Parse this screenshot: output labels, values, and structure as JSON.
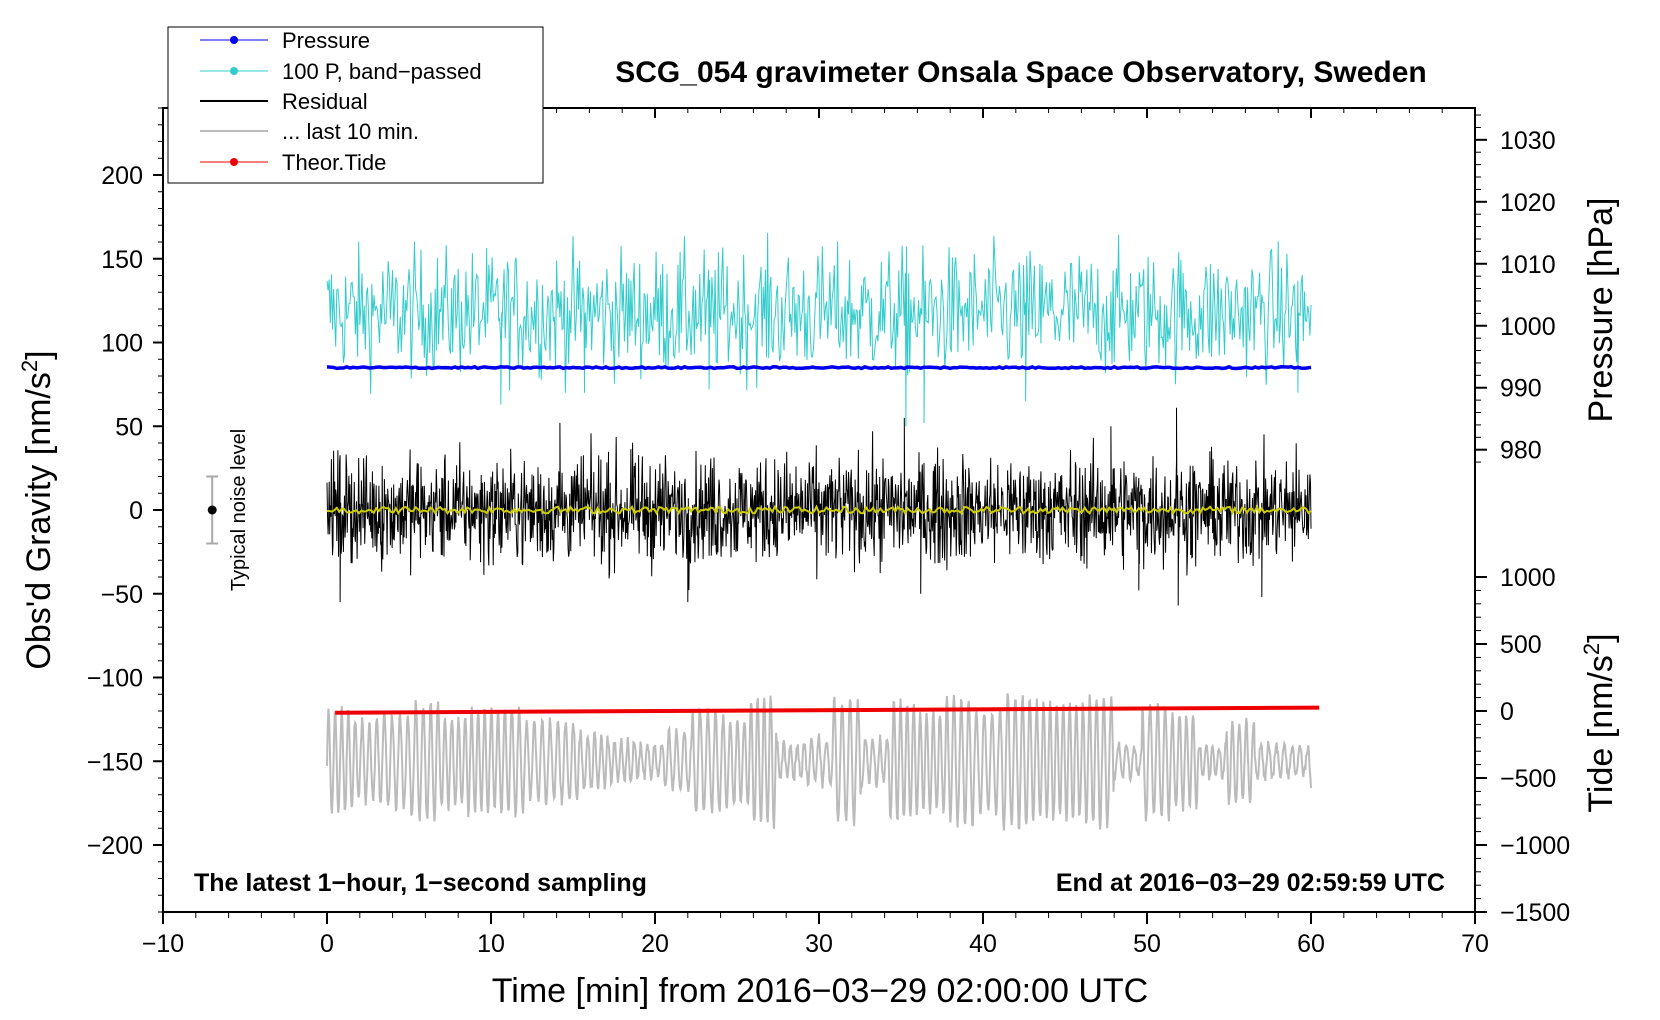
{
  "chart_data": {
    "type": "line",
    "title": "SCG_054 gravimeter Onsala Space Observatory, Sweden",
    "xlabel": "Time [min] from 2016−03−29 02:00:00 UTC",
    "ylabel_left_main": "Obs'd Gravity [nm/s",
    "ylabel_left_sup": "2",
    "ylabel_left_close": "]",
    "ylabel_right_pressure": "Pressure [hPa]",
    "ylabel_right_tide_main": "Tide [nm/s",
    "ylabel_right_tide_sup": "2",
    "ylabel_right_tide_close": "]",
    "xlim": [
      -10,
      70
    ],
    "ylim": [
      -240,
      240
    ],
    "x_ticks": [
      -10,
      0,
      10,
      20,
      30,
      40,
      50,
      60,
      70
    ],
    "x_tick_labels": [
      "−10",
      "0",
      "10",
      "20",
      "30",
      "40",
      "50",
      "60",
      "70"
    ],
    "y_ticks": [
      200,
      150,
      100,
      50,
      0,
      -50,
      -100,
      -150,
      -200
    ],
    "y_tick_labels": [
      "200",
      "150",
      "100",
      "50",
      "0",
      "−50",
      "−100",
      "−150",
      "−200"
    ],
    "pressure_axis": {
      "ticks": [
        1030,
        1020,
        1010,
        1000,
        990,
        980
      ],
      "tick_labels": [
        "1030",
        "1020",
        "1010",
        "1000",
        "990",
        "980"
      ],
      "gravity_at_1030": 221,
      "gravity_per_hPa": 3.7
    },
    "tide_axis": {
      "ticks": [
        1000,
        500,
        0,
        -500,
        -1000,
        -1500
      ],
      "tick_labels": [
        "1000",
        "500",
        "0",
        "−500",
        "−1000",
        "−1500"
      ],
      "gravity_at_0": -120,
      "gravity_per_unit": 0.08
    },
    "legend": [
      {
        "label": "Pressure",
        "color": "#0000ee",
        "marker": true
      },
      {
        "label": "100 P, band−passed",
        "color": "#33cccc",
        "marker": true
      },
      {
        "label": "Residual",
        "color": "#000000",
        "marker": false
      },
      {
        "label": "... last 10 min.",
        "color": "#bbbbbb",
        "marker": false
      },
      {
        "label": "Theor.Tide",
        "color": "#ee0000",
        "marker": true
      }
    ],
    "series": [
      {
        "name": "Pressure",
        "color": "#0000ee",
        "x_range": [
          0,
          60
        ],
        "pressure_hPa": 993.3,
        "gravity_offset": 85,
        "fluctuation": 1
      },
      {
        "name": "100 P, band−passed",
        "color": "#33cccc",
        "x_range": [
          0,
          60
        ],
        "mean": 118,
        "amplitude": 25,
        "peak_max": 168,
        "peak_min": 50
      },
      {
        "name": "Residual",
        "color": "#000000",
        "x_range": [
          0,
          60
        ],
        "mean": 0,
        "amplitude": 20,
        "peak_max": 61,
        "peak_min": -57
      },
      {
        "name": "Residual smoothed",
        "color": "#cccc00",
        "x_range": [
          0,
          60
        ],
        "mean": 0,
        "amplitude": 2
      },
      {
        "name": "... last 10 min.",
        "color": "#bbbbbb",
        "x_range": [
          0,
          60
        ],
        "mean": -150,
        "amplitude": 25,
        "peak_max": -88,
        "peak_min": -205
      },
      {
        "name": "Theor.Tide",
        "color": "#ee0000",
        "x": [
          0.5,
          60.5
        ],
        "y": [
          -121,
          -118
        ]
      }
    ],
    "noise_indicator": {
      "x": -7,
      "center": 0,
      "halfwidth": 20,
      "label": "Typical noise level"
    },
    "annotations": {
      "bottom_left": "The latest 1−hour, 1−second sampling",
      "bottom_right": "End at 2016−03−29 02:59:59 UTC"
    }
  }
}
